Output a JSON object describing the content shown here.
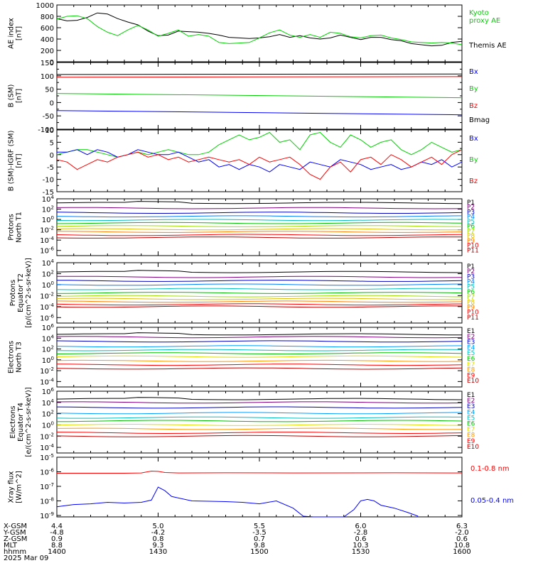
{
  "panels": [
    {
      "id": "ae",
      "ylabel": [
        "AE index",
        "[nT]"
      ],
      "scale": "linear",
      "ylim": [
        0,
        1000
      ],
      "ticks": [
        "0",
        "200",
        "400",
        "600",
        "800",
        "1000"
      ],
      "tick_values": [
        0,
        200,
        400,
        600,
        800,
        1000
      ],
      "legend": [
        {
          "text": [
            "Kyoto",
            "proxy AE"
          ],
          "color": "#00d000"
        },
        {
          "text": [
            "Themis AE"
          ],
          "color": "#000000"
        }
      ]
    },
    {
      "id": "bsm",
      "ylabel": [
        "B (SM)",
        "[nT]"
      ],
      "scale": "linear",
      "ylim": [
        -100,
        150
      ],
      "ticks": [
        "-100",
        "-50",
        "0",
        "50",
        "100",
        "150"
      ],
      "minor_ticks": [
        "-75",
        "-25",
        "25",
        "75",
        "125"
      ],
      "tick_values": [
        -100,
        -50,
        0,
        50,
        100,
        150
      ],
      "minor_tick_values": [
        -75,
        -25,
        25,
        75,
        125
      ],
      "legend": [
        {
          "text": [
            "Bx"
          ],
          "color": "#0000ff"
        },
        {
          "text": [
            "By"
          ],
          "color": "#00d000"
        },
        {
          "text": [
            "Bz"
          ],
          "color": "#ff0000"
        },
        {
          "text": [
            "Bmag"
          ],
          "color": "#000000"
        }
      ]
    },
    {
      "id": "bsm_igrf",
      "ylabel": [
        "B (SM)-IGRF (SM)",
        "[nT]"
      ],
      "scale": "linear",
      "ylim": [
        -15,
        10
      ],
      "ticks": [
        "-15",
        "-10",
        "-5",
        "0",
        "5",
        "10"
      ],
      "minor_ticks": [
        "-12.5",
        "-7.5",
        "-2.5",
        "2.5",
        "7.5"
      ],
      "tick_values": [
        -15,
        -10,
        -5,
        0,
        5,
        10
      ],
      "minor_tick_values": [
        -12.5,
        -7.5,
        -2.5,
        2.5,
        7.5
      ],
      "legend": [
        {
          "text": [
            "Bx"
          ],
          "color": "#0000ff"
        },
        {
          "text": [
            "By"
          ],
          "color": "#00d000"
        },
        {
          "text": [
            "Bz"
          ],
          "color": "#ff0000"
        }
      ]
    },
    {
      "id": "protons_t1",
      "ylabel": [
        "Protons",
        "North T1"
      ],
      "scale": "log",
      "ylim": [
        -7,
        4
      ],
      "ticks": [
        "10^4",
        "10^2",
        "10^0",
        "10^-2",
        "10^-4",
        "10^-6"
      ],
      "tick_values": [
        4,
        2,
        0,
        -2,
        -4,
        -6
      ],
      "channels": [
        "P1",
        "P2",
        "P3",
        "P4",
        "P5",
        "P6",
        "P7",
        "P8",
        "P9",
        "P10",
        "P11"
      ]
    },
    {
      "id": "protons_t2",
      "ylabel": [
        "Protons",
        "Equator T2",
        "[p/(cm^2-s-sr-keV)]"
      ],
      "scale": "log",
      "ylim": [
        -7,
        4
      ],
      "ticks": [
        "10^4",
        "10^2",
        "10^0",
        "10^-2",
        "10^-4",
        "10^-6"
      ],
      "tick_values": [
        4,
        2,
        0,
        -2,
        -4,
        -6
      ],
      "channels": [
        "P1",
        "P2",
        "P3",
        "P4",
        "P5",
        "P6",
        "P7",
        "P8",
        "P9",
        "P10",
        "P11"
      ]
    },
    {
      "id": "electrons_t3",
      "ylabel": [
        "Electrons",
        "North T3"
      ],
      "scale": "log",
      "ylim": [
        -5,
        6
      ],
      "ticks": [
        "10^6",
        "10^4",
        "10^2",
        "10^0",
        "10^-2",
        "10^-4"
      ],
      "tick_values": [
        6,
        4,
        2,
        0,
        -2,
        -4
      ],
      "channels": [
        "E1",
        "E2",
        "E3",
        "E4",
        "E5",
        "E6",
        "E7",
        "E8",
        "E9",
        "E10"
      ]
    },
    {
      "id": "electrons_t4",
      "ylabel": [
        "Electrons",
        "Equator T4",
        "[e/(cm^2-s-sr-keV)]"
      ],
      "scale": "log",
      "ylim": [
        -5,
        6
      ],
      "ticks": [
        "10^6",
        "10^4",
        "10^2",
        "10^0",
        "10^-2",
        "10^-4"
      ],
      "tick_values": [
        6,
        4,
        2,
        0,
        -2,
        -4
      ],
      "channels": [
        "E1",
        "E2",
        "E3",
        "E4",
        "E5",
        "E6",
        "E7",
        "E8",
        "E9",
        "E10"
      ]
    },
    {
      "id": "xray",
      "ylabel": [
        "Xray flux",
        "[W/m^2]"
      ],
      "scale": "log",
      "ylim": [
        -9.1,
        -5
      ],
      "ticks": [
        "10^-5",
        "10^-6",
        "10^-7",
        "10^-8",
        "10^-9"
      ],
      "tick_values": [
        -5,
        -6,
        -7,
        -8,
        -9
      ],
      "legend": [
        {
          "text": [
            "0.1-0.8 nm"
          ],
          "color": "#ff0000"
        },
        {
          "text": [
            "0.05-0.4 nm"
          ],
          "color": "#0000ff"
        }
      ]
    }
  ],
  "channel_colors": {
    "protons": [
      "#000000",
      "#800080",
      "#0000c0",
      "#0080ff",
      "#00c0c0",
      "#00c000",
      "#a0e000",
      "#e0c000",
      "#ff8000",
      "#ff0000",
      "#c00000"
    ],
    "electrons": [
      "#000000",
      "#800080",
      "#0000c0",
      "#00a0ff",
      "#00c0c0",
      "#00c000",
      "#e0e000",
      "#ff9900",
      "#ff0000",
      "#c00000"
    ]
  },
  "orbit_table": {
    "labels": [
      "X-GSM",
      "Y-GSM",
      "Z-GSM",
      "MLT",
      "hhmm",
      "2025 Mar 09"
    ],
    "columns": [
      {
        "x": 0,
        "values": [
          "4.4",
          "-4.8",
          "0.9",
          "8.8",
          "1400"
        ]
      },
      {
        "x": 30,
        "values": [
          "5.0",
          "-4.2",
          "0.8",
          "9.3",
          "1430"
        ]
      },
      {
        "x": 60,
        "values": [
          "5.5",
          "-3.5",
          "0.7",
          "9.8",
          "1500"
        ]
      },
      {
        "x": 90,
        "values": [
          "6.0",
          "-2.8",
          "0.6",
          "10.3",
          "1530"
        ]
      },
      {
        "x": 120,
        "values": [
          "6.3",
          "-2.0",
          "0.6",
          "10.8",
          "1600"
        ]
      }
    ]
  },
  "chart_data": {
    "type": "line",
    "x_unit": "minutes after 1400 UT",
    "xlim": [
      0,
      120
    ],
    "ae": {
      "series": [
        {
          "name": "Themis AE",
          "color": "#000000",
          "x": [
            0,
            3,
            6,
            9,
            12,
            15,
            18,
            21,
            24,
            27,
            30,
            33,
            36,
            39,
            42,
            45,
            48,
            51,
            54,
            57,
            60,
            63,
            66,
            69,
            72,
            75,
            78,
            81,
            84,
            87,
            90,
            93,
            96,
            99,
            102,
            105,
            108,
            111,
            114,
            117,
            120
          ],
          "y": [
            760,
            720,
            730,
            780,
            860,
            840,
            760,
            700,
            650,
            540,
            460,
            470,
            540,
            530,
            520,
            500,
            470,
            430,
            420,
            410,
            420,
            440,
            480,
            430,
            460,
            420,
            400,
            420,
            470,
            430,
            390,
            430,
            430,
            390,
            370,
            320,
            300,
            280,
            290,
            340,
            360
          ]
        },
        {
          "name": "Kyoto proxy AE",
          "color": "#00d000",
          "x": [
            0,
            3,
            6,
            9,
            12,
            15,
            18,
            21,
            24,
            27,
            30,
            33,
            36,
            39,
            42,
            45,
            48,
            51,
            54,
            57,
            60,
            63,
            66,
            69,
            72,
            75,
            78,
            81,
            84,
            87,
            90,
            93,
            96,
            99,
            102,
            105,
            108,
            111,
            114,
            117,
            120
          ],
          "y": [
            750,
            800,
            810,
            760,
            620,
            520,
            460,
            560,
            640,
            560,
            450,
            500,
            560,
            450,
            480,
            450,
            340,
            320,
            330,
            340,
            420,
            510,
            560,
            470,
            430,
            480,
            430,
            520,
            500,
            440,
            420,
            460,
            470,
            420,
            390,
            350,
            340,
            330,
            340,
            330,
            300
          ]
        }
      ]
    },
    "b_sm": {
      "series": [
        {
          "name": "Bmag",
          "color": "#000000",
          "x": [
            0,
            120
          ],
          "y": [
            105,
            107
          ]
        },
        {
          "name": "Bz",
          "color": "#ff0000",
          "x": [
            0,
            120
          ],
          "y": [
            95,
            97
          ]
        },
        {
          "name": "By",
          "color": "#00d000",
          "x": [
            0,
            120
          ],
          "y": [
            34,
            18
          ]
        },
        {
          "name": "Bx",
          "color": "#0000ff",
          "x": [
            0,
            120
          ],
          "y": [
            -30,
            -46
          ]
        }
      ]
    },
    "b_igrf": {
      "series": [
        {
          "name": "By",
          "color": "#00d000",
          "x": [
            0,
            3,
            6,
            9,
            12,
            15,
            18,
            21,
            24,
            27,
            30,
            33,
            36,
            39,
            42,
            45,
            48,
            51,
            54,
            57,
            60,
            63,
            66,
            69,
            72,
            75,
            78,
            81,
            84,
            87,
            90,
            93,
            96,
            99,
            102,
            105,
            108,
            111,
            114,
            117,
            120
          ],
          "y": [
            0,
            1,
            2,
            2,
            1,
            0,
            -1,
            0,
            1,
            0,
            1,
            2,
            1,
            0,
            0,
            1,
            4,
            6,
            8,
            6,
            7,
            9,
            5,
            6,
            2,
            8,
            9,
            5,
            3,
            8,
            6,
            3,
            5,
            6,
            2,
            0,
            2,
            5,
            3,
            1,
            2
          ]
        },
        {
          "name": "Bx",
          "color": "#0000ff",
          "x": [
            0,
            3,
            6,
            9,
            12,
            15,
            18,
            21,
            24,
            27,
            30,
            33,
            36,
            39,
            42,
            45,
            48,
            51,
            54,
            57,
            60,
            63,
            66,
            69,
            72,
            75,
            78,
            81,
            84,
            87,
            90,
            93,
            96,
            99,
            102,
            105,
            108,
            111,
            114,
            117,
            120
          ],
          "y": [
            1,
            1,
            2,
            0,
            2,
            1,
            -1,
            0,
            2,
            1,
            0,
            0,
            1,
            -1,
            -3,
            -2,
            -5,
            -4,
            -6,
            -4,
            -5,
            -7,
            -4,
            -5,
            -6,
            -3,
            -4,
            -5,
            -2,
            -3,
            -4,
            -6,
            -5,
            -4,
            -6,
            -5,
            -3,
            -4,
            -2,
            -5,
            -3
          ]
        },
        {
          "name": "Bz",
          "color": "#ff0000",
          "x": [
            0,
            3,
            6,
            9,
            12,
            15,
            18,
            21,
            24,
            27,
            30,
            33,
            36,
            39,
            42,
            45,
            48,
            51,
            54,
            57,
            60,
            63,
            66,
            69,
            72,
            75,
            78,
            81,
            84,
            87,
            90,
            93,
            96,
            99,
            102,
            105,
            108,
            111,
            114,
            117,
            120
          ],
          "y": [
            -2,
            -3,
            -6,
            -4,
            -2,
            -3,
            -1,
            0,
            1,
            -1,
            0,
            -2,
            -1,
            -3,
            -2,
            -1,
            -2,
            -3,
            -2,
            -4,
            -1,
            -3,
            -2,
            -1,
            -4,
            -8,
            -10,
            -5,
            -3,
            -7,
            -2,
            -1,
            -4,
            0,
            -2,
            -5,
            -3,
            -1,
            -4,
            0,
            2
          ]
        }
      ]
    },
    "protons_t1_log10": [
      3.2,
      2.2,
      1.3,
      0.6,
      -0.1,
      -0.7,
      -1.3,
      -1.9,
      -2.4,
      -3.0,
      -3.5
    ],
    "protons_t2_log10": [
      2.3,
      1.4,
      0.7,
      0.0,
      -0.8,
      -1.5,
      -2.1,
      -2.6,
      -3.1,
      -3.6,
      -4.0
    ],
    "electrons_t3_log10": [
      4.7,
      4.2,
      3.4,
      2.5,
      1.8,
      1.2,
      0.6,
      -0.2,
      -0.9,
      -1.6
    ],
    "electrons_t4_log10": [
      4.6,
      4.0,
      3.1,
      2.1,
      1.3,
      0.7,
      0.0,
      -0.7,
      -1.4,
      -2.0
    ],
    "xray": {
      "series": [
        {
          "name": "0.1-0.8 nm",
          "color": "#ff0000",
          "x": [
            0,
            10,
            20,
            25,
            28,
            30,
            32,
            36,
            50,
            70,
            100,
            120
          ],
          "log10": [
            -6.1,
            -6.1,
            -6.1,
            -6.08,
            -5.95,
            -5.97,
            -6.05,
            -6.08,
            -6.07,
            -6.08,
            -6.07,
            -6.08
          ]
        },
        {
          "name": "0.05-0.4 nm",
          "color": "#0000ff",
          "x": [
            0,
            5,
            10,
            15,
            20,
            25,
            28,
            30,
            32,
            34,
            40,
            50,
            55,
            60,
            65,
            70,
            73,
            76,
            80,
            85,
            88,
            90,
            92,
            94,
            96,
            100,
            104,
            107
          ],
          "log10": [
            -8.4,
            -8.25,
            -8.2,
            -8.1,
            -8.15,
            -8.1,
            -7.95,
            -7.05,
            -7.3,
            -7.7,
            -8.0,
            -8.05,
            -8.1,
            -8.2,
            -8.0,
            -8.5,
            -9.05,
            -9.1,
            -9.1,
            -9.1,
            -8.6,
            -8.0,
            -7.9,
            -8.0,
            -8.3,
            -8.5,
            -8.8,
            -9.05
          ]
        }
      ]
    }
  }
}
